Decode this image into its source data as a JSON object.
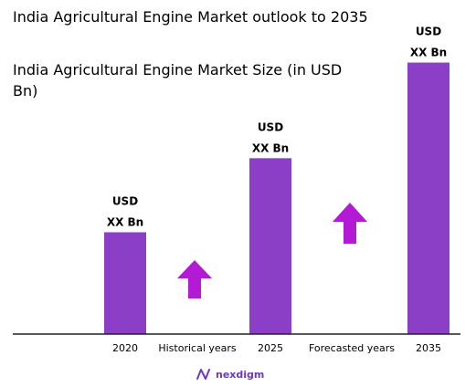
{
  "header": {
    "title": "India Agricultural Engine Market outlook to 2035"
  },
  "chart_data": {
    "type": "bar",
    "title_lines": [
      "India Agricultural Engine Market Size (in USD",
      "Bn)"
    ],
    "categories": [
      "2020",
      "2025",
      "2035"
    ],
    "values": [
      0.33,
      0.57,
      0.88
    ],
    "ylim": [
      0,
      1
    ],
    "value_labels": [
      [
        "USD",
        "XX Bn"
      ],
      [
        "USD",
        "XX Bn"
      ],
      [
        "USD",
        "XX Bn"
      ]
    ],
    "period_labels": [
      "Historical years",
      "Forecasted years"
    ],
    "grid": false,
    "legend": "none",
    "colors": {
      "bar": "#8a3fc6",
      "arrow": "#b31ad6",
      "axis": "#222222",
      "text": "#1f1f1f"
    }
  },
  "footer": {
    "brand": "nexdigm",
    "icon": "nexdigm-logo-icon"
  }
}
